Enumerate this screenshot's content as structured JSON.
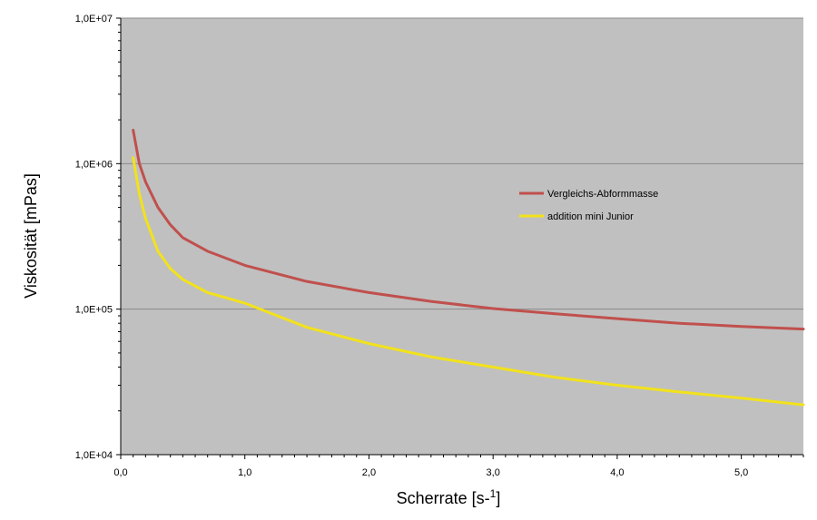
{
  "chart_data": {
    "type": "line",
    "title": "",
    "xlabel": "Scherrate [s-1]",
    "xlabel_base": "Scherrate [s-",
    "xlabel_sup": "1",
    "xlabel_close": "]",
    "ylabel": "Viskosität [mPas]",
    "xlim": [
      0,
      5.5
    ],
    "ylim": [
      10000,
      10000000
    ],
    "yscale": "log",
    "grid": "horizontal major gridlines",
    "legend_position": "right-center",
    "x_ticks": [
      0,
      1,
      2,
      3,
      4,
      5
    ],
    "x_tick_labels": [
      "0,0",
      "1,0",
      "2,0",
      "3,0",
      "4,0",
      "5,0"
    ],
    "y_ticks": [
      10000,
      100000,
      1000000,
      10000000
    ],
    "y_tick_labels": [
      "1,0E+04",
      "1,0E+05",
      "1,0E+06",
      "1,0E+07"
    ],
    "series": [
      {
        "name": "Vergleichs-Abformmasse",
        "color": "#c0504d",
        "x": [
          0.1,
          0.15,
          0.2,
          0.3,
          0.4,
          0.5,
          0.7,
          1.0,
          1.5,
          2.0,
          2.5,
          3.0,
          3.5,
          4.0,
          4.5,
          5.0,
          5.5
        ],
        "y": [
          1700000,
          1000000,
          750000,
          500000,
          380000,
          310000,
          250000,
          200000,
          155000,
          130000,
          113000,
          101000,
          93000,
          86000,
          80000,
          76000,
          73000
        ]
      },
      {
        "name": "addition mini Junior",
        "color": "#f2e21b",
        "x": [
          0.1,
          0.15,
          0.2,
          0.3,
          0.4,
          0.5,
          0.7,
          1.0,
          1.5,
          2.0,
          2.5,
          3.0,
          3.5,
          4.0,
          4.5,
          5.0,
          5.5
        ],
        "y": [
          1100000,
          620000,
          420000,
          250000,
          190000,
          160000,
          130000,
          110000,
          75000,
          58000,
          47000,
          40000,
          34000,
          30000,
          27000,
          24500,
          22000
        ]
      }
    ]
  }
}
